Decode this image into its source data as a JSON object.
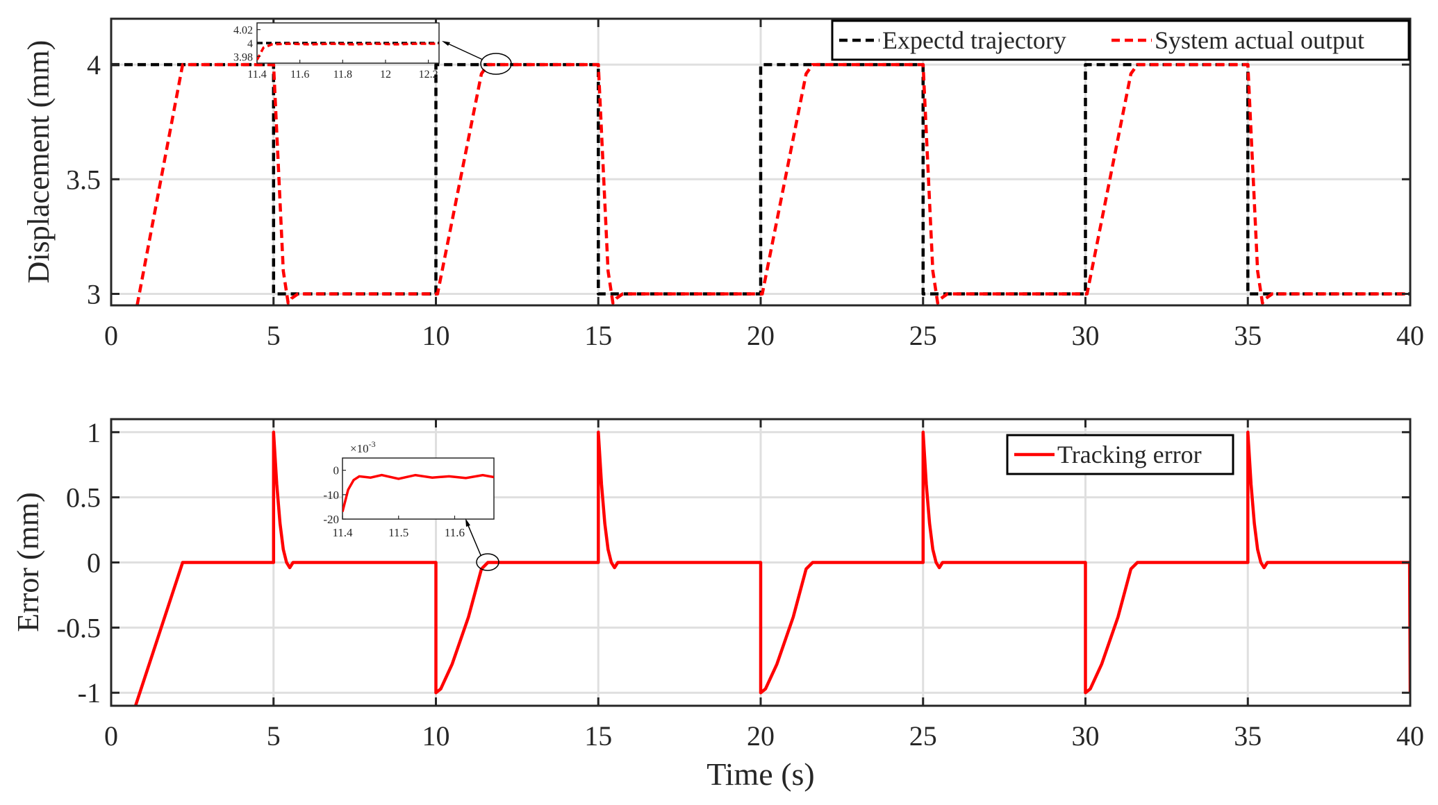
{
  "chart_data": [
    {
      "type": "line",
      "title": "",
      "xlabel": "",
      "ylabel": "Displacement (mm)",
      "xlim": [
        0,
        40
      ],
      "ylim": [
        2.95,
        4.2
      ],
      "xticks": [
        "0",
        "5",
        "10",
        "15",
        "20",
        "25",
        "30",
        "35",
        "40"
      ],
      "yticks": [
        "3",
        "3.5",
        "4"
      ],
      "grid": true,
      "legend": "top-right",
      "series": [
        {
          "name": "Expectd trajectory",
          "style": "dashed",
          "color": "#000000",
          "x": [
            0,
            5,
            5,
            10,
            10,
            15,
            15,
            20,
            20,
            25,
            25,
            30,
            30,
            35,
            35,
            40
          ],
          "y": [
            4,
            4,
            3,
            3,
            4,
            4,
            3,
            3,
            4,
            4,
            3,
            3,
            4,
            4,
            3,
            3
          ]
        },
        {
          "name": "System actual output",
          "style": "dashed",
          "color": "#ff0000",
          "x": [
            0.8,
            2.2,
            5.0,
            5.3,
            5.45,
            5.55,
            5.75,
            10.0,
            10.05,
            11.4,
            11.6,
            15.0,
            15.3,
            15.45,
            15.55,
            15.75,
            20.0,
            20.05,
            21.4,
            21.6,
            25.0,
            25.3,
            25.45,
            25.55,
            25.75,
            30.0,
            30.05,
            31.4,
            31.6,
            35.0,
            35.3,
            35.45,
            35.55,
            35.75,
            40.0
          ],
          "y": [
            2.95,
            4.0,
            4.0,
            3.1,
            2.96,
            2.98,
            3.0,
            3.0,
            3.0,
            3.96,
            4.0,
            4.0,
            3.1,
            2.96,
            2.98,
            3.0,
            3.0,
            3.0,
            3.96,
            4.0,
            4.0,
            3.1,
            2.96,
            2.98,
            3.0,
            3.0,
            3.0,
            3.96,
            4.0,
            4.0,
            3.1,
            2.96,
            2.98,
            3.0,
            3.0
          ]
        }
      ],
      "inset": {
        "xlim": [
          11.4,
          12.25
        ],
        "ylim": [
          3.97,
          4.03
        ],
        "xticks": [
          "11.4",
          "11.6",
          "11.8",
          "12",
          "12.2"
        ],
        "yticks": [
          "4.02",
          "4",
          "3.98"
        ],
        "series": [
          {
            "name": "Expectd trajectory",
            "x": [
              11.4,
              12.25
            ],
            "y": [
              4.0,
              4.0
            ]
          },
          {
            "name": "System actual output",
            "x": [
              11.4,
              11.43,
              11.47,
              11.55,
              11.65,
              11.75,
              11.85,
              11.95,
              12.05,
              12.15,
              12.25
            ],
            "y": [
              3.975,
              3.993,
              3.998,
              3.999,
              3.998,
              3.999,
              3.998,
              3.999,
              3.998,
              3.999,
              3.999
            ]
          }
        ]
      }
    },
    {
      "type": "line",
      "title": "",
      "xlabel": "Time (s)",
      "ylabel": "Error (mm)",
      "xlim": [
        0,
        40
      ],
      "ylim": [
        -1.1,
        1.1
      ],
      "xticks": [
        "0",
        "5",
        "10",
        "15",
        "20",
        "25",
        "30",
        "35",
        "40"
      ],
      "yticks": [
        "1",
        "0.5",
        "0",
        "-0.5",
        "-1"
      ],
      "grid": true,
      "legend": "top-right",
      "series": [
        {
          "name": "Tracking error",
          "style": "solid",
          "color": "#ff0000",
          "x": [
            0.75,
            2.2,
            5.0,
            5.0,
            5.1,
            5.2,
            5.3,
            5.4,
            5.5,
            5.6,
            10.0,
            10.0,
            10.15,
            10.5,
            11.0,
            11.4,
            11.6,
            15.0,
            15.0,
            15.1,
            15.2,
            15.3,
            15.4,
            15.5,
            15.6,
            20.0,
            20.0,
            20.15,
            20.5,
            21.0,
            21.4,
            21.6,
            25.0,
            25.0,
            25.1,
            25.2,
            25.3,
            25.4,
            25.5,
            25.6,
            30.0,
            30.0,
            30.15,
            30.5,
            31.0,
            31.4,
            31.6,
            35.0,
            35.0,
            35.1,
            35.2,
            35.3,
            35.4,
            35.5,
            35.6,
            39.98,
            40.0
          ],
          "y": [
            -1.1,
            0,
            0,
            1.0,
            0.6,
            0.3,
            0.1,
            0.0,
            -0.04,
            0,
            0,
            -1.0,
            -0.97,
            -0.78,
            -0.42,
            -0.05,
            0,
            0,
            1.0,
            0.6,
            0.3,
            0.1,
            0.0,
            -0.04,
            0,
            0,
            -1.0,
            -0.97,
            -0.78,
            -0.42,
            -0.05,
            0,
            0,
            1.0,
            0.6,
            0.3,
            0.1,
            0.0,
            -0.04,
            0,
            0,
            -1.0,
            -0.97,
            -0.78,
            -0.42,
            -0.05,
            0,
            0,
            1.0,
            0.6,
            0.3,
            0.1,
            0.0,
            -0.04,
            0,
            0,
            -1.0
          ]
        }
      ],
      "inset": {
        "xlim": [
          11.4,
          11.67
        ],
        "ylim": [
          -20,
          5
        ],
        "yscale_label": "×10",
        "yscale_exp": "-3",
        "xticks": [
          "11.4",
          "11.5",
          "11.6"
        ],
        "yticks": [
          "0",
          "-10",
          "-20"
        ],
        "series": [
          {
            "name": "Tracking error",
            "x": [
              11.4,
              11.41,
              11.42,
              11.43,
              11.45,
              11.47,
              11.5,
              11.53,
              11.56,
              11.59,
              11.62,
              11.65,
              11.67
            ],
            "y": [
              -17,
              -8,
              -4,
              -2.5,
              -3,
              -2,
              -3.5,
              -2,
              -3,
              -2.5,
              -3.2,
              -2,
              -2.8
            ]
          }
        ]
      }
    }
  ]
}
